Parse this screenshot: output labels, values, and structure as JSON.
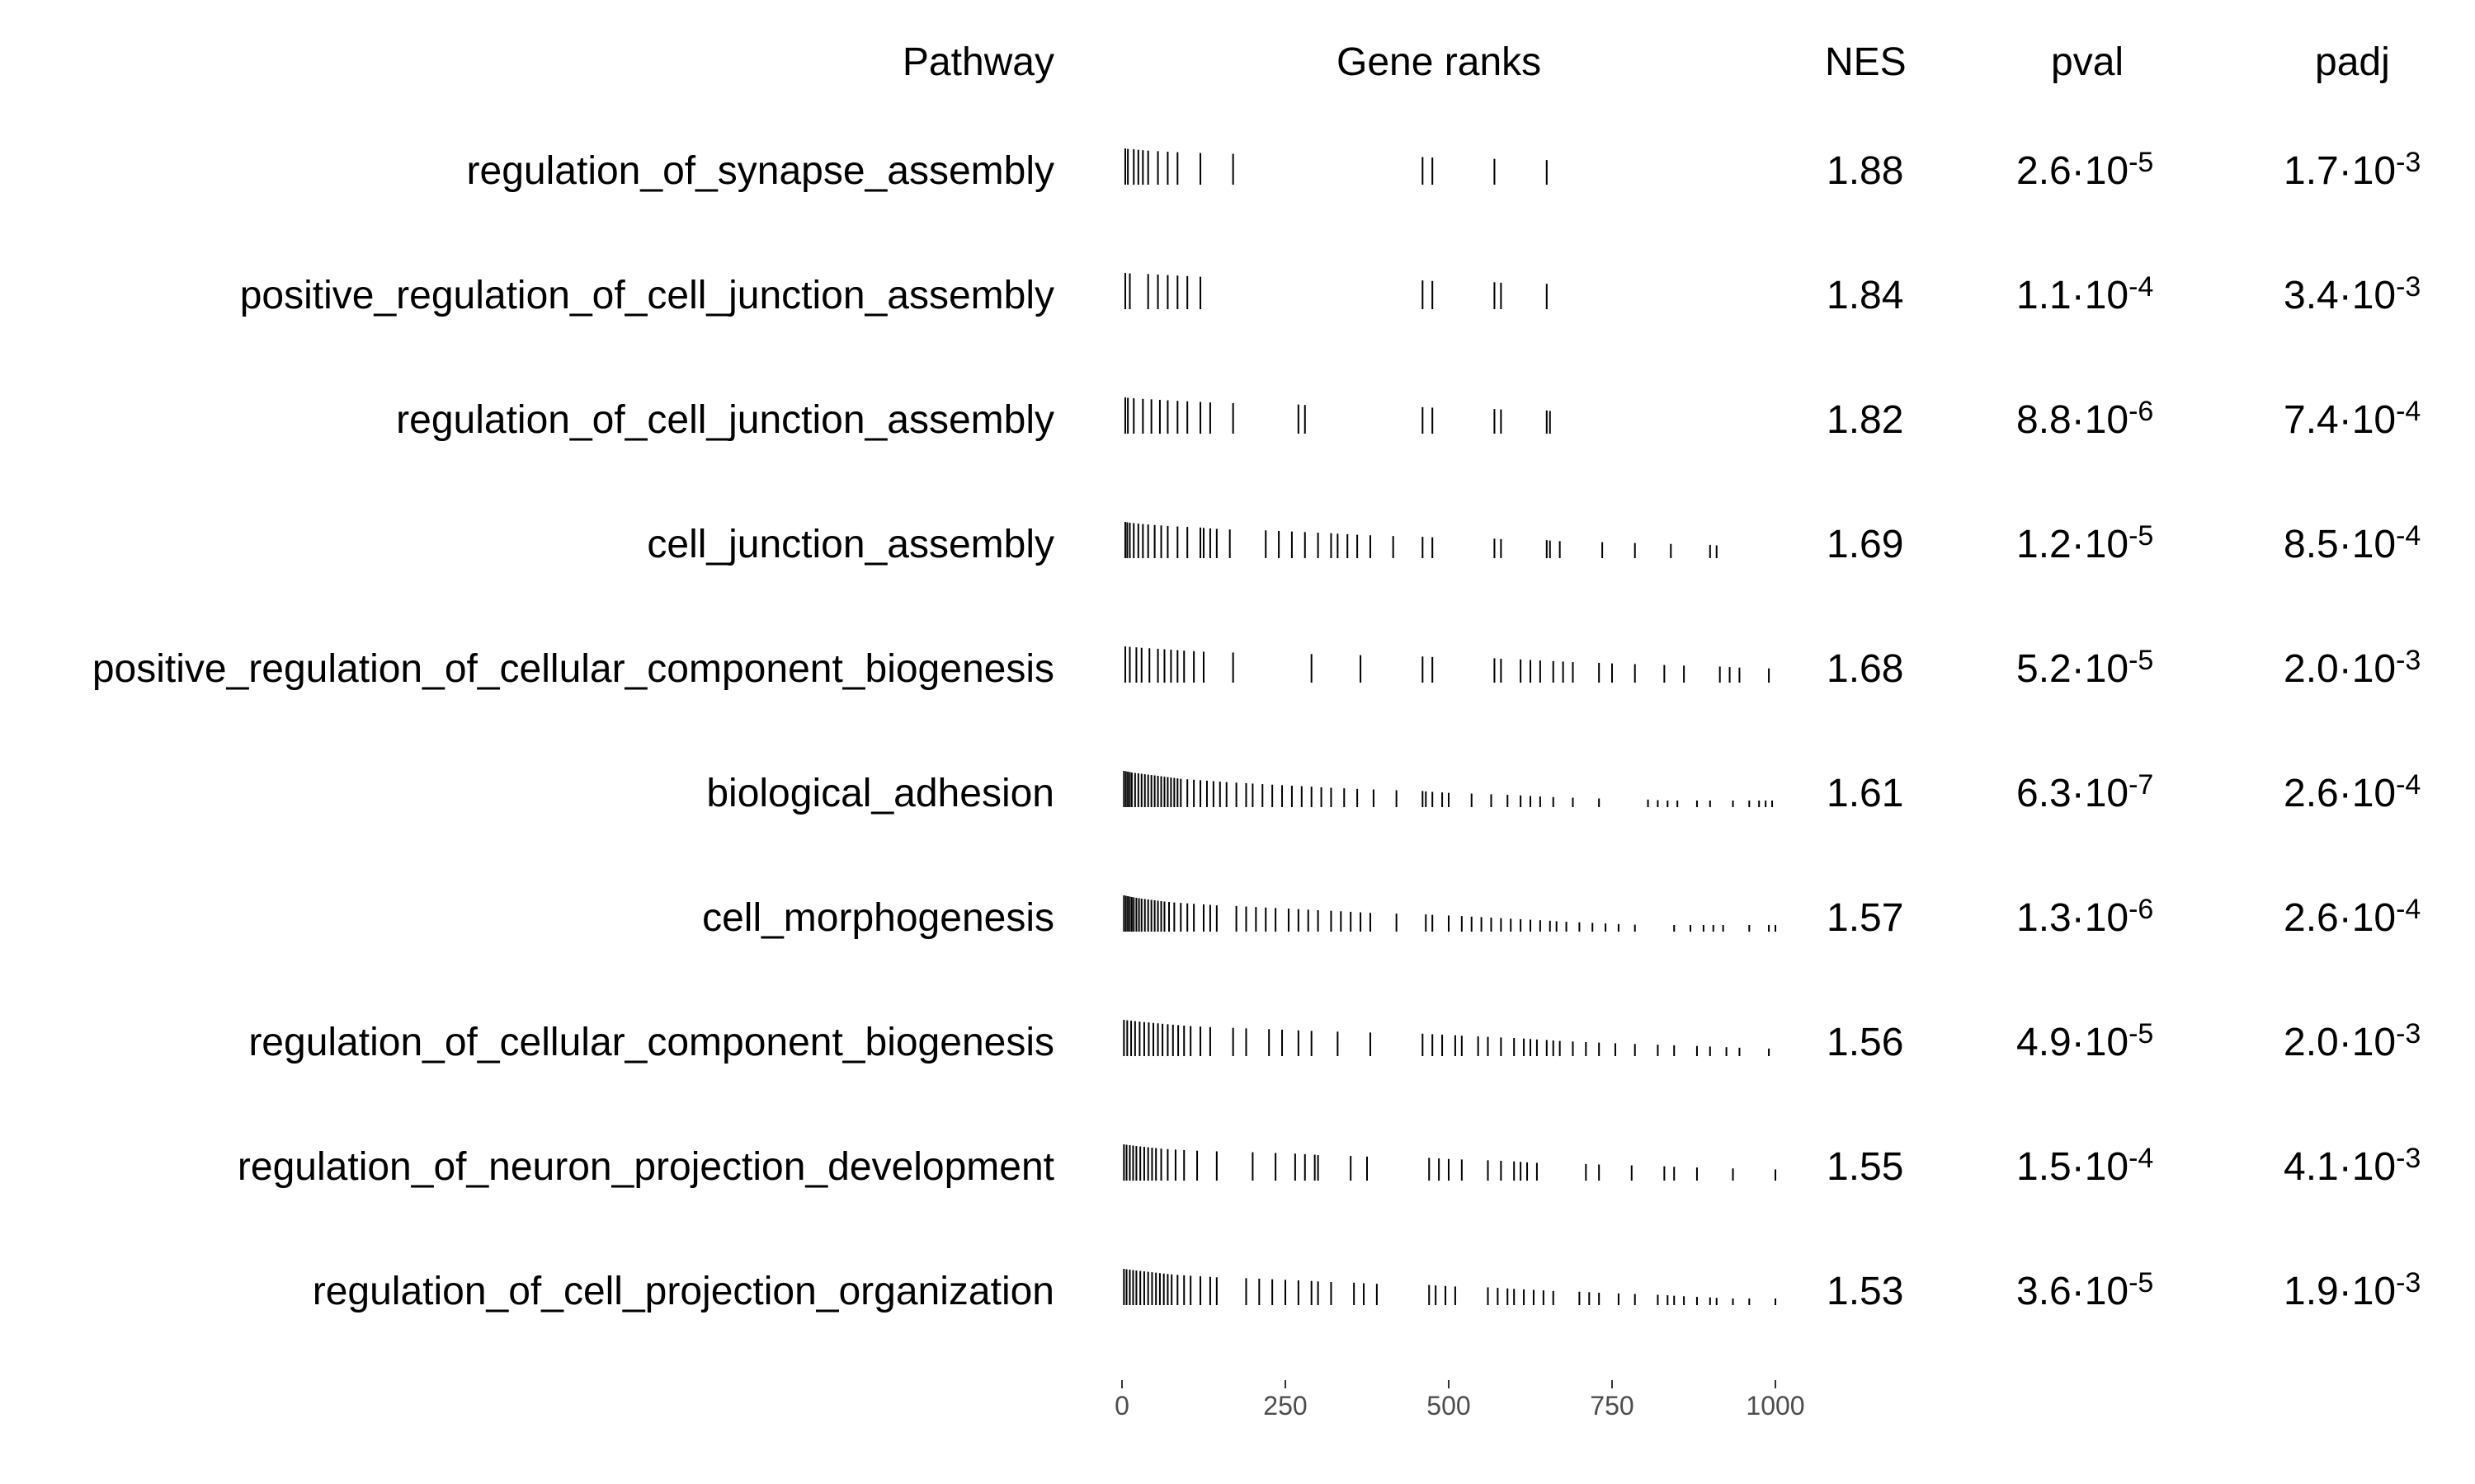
{
  "chart_data": {
    "type": "table",
    "headers": {
      "pathway": "Pathway",
      "ranks": "Gene ranks",
      "nes": "NES",
      "pval": "pval",
      "padj": "padj"
    },
    "x_axis": {
      "ticks": [
        0,
        250,
        500,
        750,
        1000
      ],
      "xlim": [
        0,
        1000
      ]
    },
    "rows": [
      {
        "pathway": "regulation_of_synapse_assembly",
        "nes": "1.88",
        "pval": {
          "mant": "2.6",
          "exp": "-5"
        },
        "padj": {
          "mant": "1.7",
          "exp": "-3"
        },
        "ranks": [
          5,
          9,
          18,
          25,
          32,
          40,
          55,
          70,
          85,
          120,
          170,
          460,
          475,
          570,
          650
        ]
      },
      {
        "pathway": "positive_regulation_of_cell_junction_assembly",
        "nes": "1.84",
        "pval": {
          "mant": "1.1",
          "exp": "-4"
        },
        "padj": {
          "mant": "3.4",
          "exp": "-3"
        },
        "ranks": [
          5,
          12,
          40,
          55,
          70,
          85,
          100,
          120,
          460,
          475,
          570,
          580,
          650
        ]
      },
      {
        "pathway": "regulation_of_cell_junction_assembly",
        "nes": "1.82",
        "pval": {
          "mant": "8.8",
          "exp": "-6"
        },
        "padj": {
          "mant": "7.4",
          "exp": "-4"
        },
        "ranks": [
          5,
          9,
          18,
          32,
          45,
          58,
          70,
          85,
          100,
          120,
          135,
          170,
          270,
          280,
          460,
          475,
          570,
          580,
          650,
          655
        ]
      },
      {
        "pathway": "cell_junction_assembly",
        "nes": "1.69",
        "pval": {
          "mant": "1.2",
          "exp": "-5"
        },
        "padj": {
          "mant": "8.5",
          "exp": "-4"
        },
        "ranks": [
          5,
          8,
          12,
          18,
          25,
          32,
          40,
          50,
          60,
          70,
          85,
          100,
          120,
          125,
          135,
          145,
          165,
          220,
          240,
          260,
          280,
          300,
          320,
          330,
          345,
          360,
          380,
          415,
          460,
          475,
          570,
          580,
          650,
          655,
          670,
          735,
          785,
          840,
          900,
          910
        ]
      },
      {
        "pathway": "positive_regulation_of_cellular_component_biogenesis",
        "nes": "1.68",
        "pval": {
          "mant": "5.2",
          "exp": "-5"
        },
        "padj": {
          "mant": "2.0",
          "exp": "-3"
        },
        "ranks": [
          5,
          12,
          22,
          30,
          42,
          55,
          65,
          75,
          85,
          95,
          110,
          125,
          170,
          290,
          365,
          460,
          475,
          570,
          580,
          610,
          625,
          640,
          660,
          675,
          690,
          730,
          750,
          785,
          830,
          860,
          915,
          930,
          945,
          990
        ]
      },
      {
        "pathway": "biological_adhesion",
        "nes": "1.61",
        "pval": {
          "mant": "6.3",
          "exp": "-7"
        },
        "padj": {
          "mant": "2.6",
          "exp": "-4"
        },
        "ranks": [
          3,
          6,
          9,
          12,
          15,
          20,
          25,
          30,
          35,
          40,
          45,
          50,
          55,
          60,
          65,
          70,
          75,
          80,
          85,
          90,
          100,
          110,
          120,
          130,
          140,
          150,
          160,
          175,
          190,
          200,
          215,
          230,
          245,
          260,
          275,
          290,
          305,
          320,
          340,
          360,
          385,
          420,
          460,
          465,
          475,
          490,
          500,
          535,
          565,
          590,
          610,
          625,
          640,
          660,
          690,
          730,
          805,
          820,
          835,
          850,
          880,
          900,
          935,
          960,
          975,
          985,
          995
        ]
      },
      {
        "pathway": "cell_morphogenesis",
        "nes": "1.57",
        "pval": {
          "mant": "1.3",
          "exp": "-6"
        },
        "padj": {
          "mant": "2.6",
          "exp": "-4"
        },
        "ranks": [
          3,
          6,
          9,
          12,
          15,
          18,
          22,
          26,
          30,
          35,
          40,
          45,
          50,
          55,
          60,
          65,
          72,
          80,
          90,
          100,
          110,
          125,
          135,
          145,
          175,
          190,
          205,
          220,
          235,
          255,
          270,
          285,
          300,
          320,
          335,
          350,
          365,
          380,
          420,
          465,
          475,
          500,
          520,
          535,
          550,
          565,
          580,
          595,
          610,
          625,
          640,
          655,
          665,
          680,
          700,
          720,
          740,
          760,
          785,
          845,
          870,
          890,
          905,
          920,
          960,
          990,
          1000
        ]
      },
      {
        "pathway": "regulation_of_cellular_component_biogenesis",
        "nes": "1.56",
        "pval": {
          "mant": "4.9",
          "exp": "-5"
        },
        "padj": {
          "mant": "2.0",
          "exp": "-3"
        },
        "ranks": [
          3,
          8,
          14,
          20,
          27,
          34,
          41,
          48,
          55,
          62,
          70,
          78,
          86,
          95,
          105,
          120,
          135,
          170,
          190,
          225,
          245,
          270,
          290,
          330,
          380,
          460,
          475,
          490,
          510,
          520,
          545,
          560,
          580,
          600,
          615,
          625,
          635,
          650,
          660,
          670,
          690,
          710,
          730,
          755,
          785,
          820,
          845,
          880,
          900,
          925,
          945,
          990
        ]
      },
      {
        "pathway": "regulation_of_neuron_projection_development",
        "nes": "1.55",
        "pval": {
          "mant": "1.5",
          "exp": "-4"
        },
        "padj": {
          "mant": "4.1",
          "exp": "-3"
        },
        "ranks": [
          3,
          7,
          12,
          17,
          22,
          28,
          34,
          40,
          46,
          52,
          60,
          70,
          82,
          95,
          115,
          145,
          200,
          235,
          265,
          280,
          295,
          300,
          350,
          375,
          470,
          485,
          500,
          520,
          560,
          580,
          600,
          610,
          620,
          635,
          710,
          730,
          780,
          830,
          845,
          880,
          935,
          1000
        ]
      },
      {
        "pathway": "regulation_of_cell_projection_organization",
        "nes": "1.53",
        "pval": {
          "mant": "3.6",
          "exp": "-5"
        },
        "padj": {
          "mant": "1.9",
          "exp": "-3"
        },
        "ranks": [
          3,
          7,
          12,
          17,
          22,
          28,
          34,
          40,
          46,
          52,
          58,
          64,
          70,
          76,
          85,
          95,
          105,
          120,
          135,
          145,
          190,
          210,
          230,
          250,
          270,
          290,
          300,
          320,
          355,
          370,
          390,
          470,
          480,
          495,
          510,
          560,
          575,
          590,
          600,
          615,
          630,
          645,
          660,
          700,
          715,
          730,
          760,
          785,
          820,
          835,
          845,
          860,
          880,
          900,
          910,
          935,
          960,
          1000
        ]
      }
    ]
  }
}
